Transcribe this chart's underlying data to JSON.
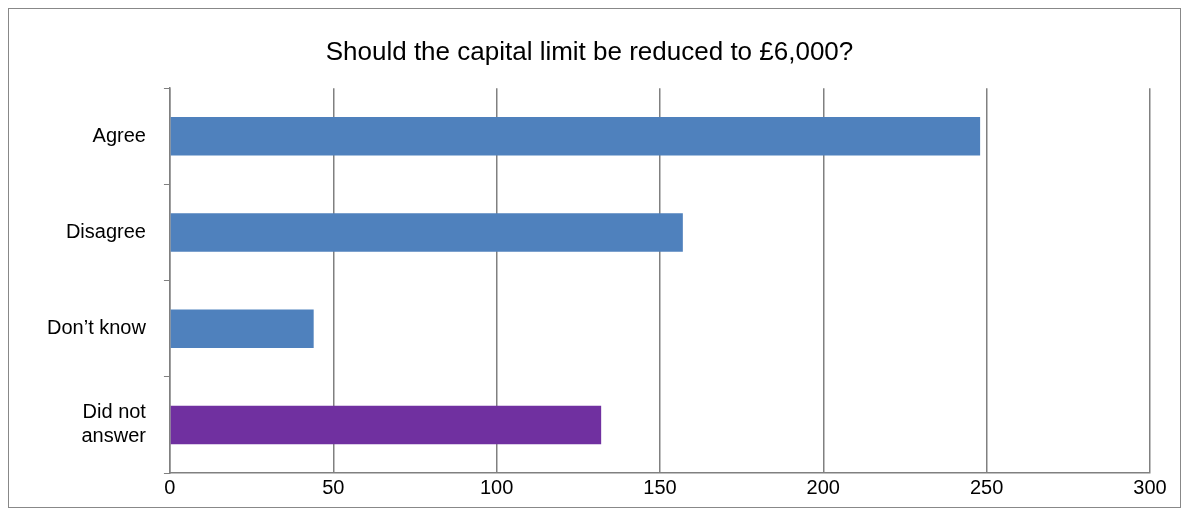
{
  "chart_data": {
    "type": "bar",
    "orientation": "horizontal",
    "title": "Should the capital limit be reduced to £6,000?",
    "categories": [
      "Agree",
      "Disagree",
      "Don’t know",
      "Did not answer"
    ],
    "values": [
      248,
      157,
      44,
      132
    ],
    "colors": [
      "#4f81bd",
      "#4f81bd",
      "#4f81bd",
      "#7030a0"
    ],
    "xlim": [
      0,
      300
    ],
    "xticks": [
      0,
      50,
      100,
      150,
      200,
      250,
      300
    ],
    "grid": "x",
    "legend": false
  }
}
